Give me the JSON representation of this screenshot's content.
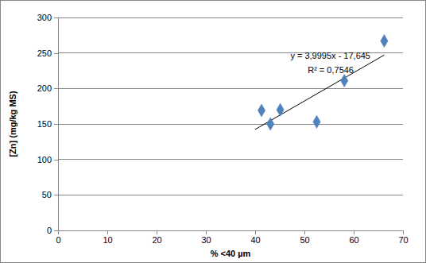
{
  "chart_data": {
    "type": "scatter",
    "x_label": "% <40 µm",
    "y_label": "[Zn] (mg/kg MS)",
    "x": [
      41.3,
      43.1,
      45.1,
      52.5,
      58.1,
      66.2
    ],
    "series": [
      {
        "values": [
          169,
          150,
          170,
          153,
          211,
          267
        ],
        "color": "#4f81bd",
        "marker": "diamond"
      }
    ],
    "trendline": {
      "equation": "y = 3,9995x - 17,645",
      "r2": "R² = 0,7546",
      "x": [
        40,
        66.2
      ],
      "values": [
        142.3,
        247.1
      ],
      "color": "#000000"
    },
    "xlim": [
      0,
      70
    ],
    "xticks": [
      0,
      10,
      20,
      30,
      40,
      50,
      60,
      70
    ],
    "ylim": [
      0,
      300
    ],
    "yticks": [
      0,
      50,
      100,
      150,
      200,
      250,
      300
    ],
    "grid": true
  }
}
